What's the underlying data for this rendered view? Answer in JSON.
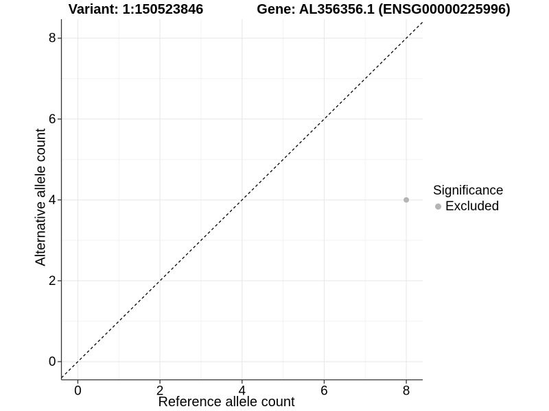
{
  "titles": {
    "variant": "Variant: 1:150523846",
    "gene": "Gene: AL356356.1 (ENSG00000225996)"
  },
  "chart_data": {
    "type": "scatter",
    "xlabel": "Reference allele count",
    "ylabel": "Alternative allele count",
    "xlim": [
      -0.4,
      8.4
    ],
    "ylim": [
      -0.45,
      8.47
    ],
    "xticks": [
      0,
      2,
      4,
      6,
      8
    ],
    "yticks": [
      0,
      2,
      4,
      6,
      8
    ],
    "minor_xticks": [
      1,
      3,
      5,
      7
    ],
    "minor_yticks": [
      1,
      3,
      5,
      7
    ],
    "grid": true,
    "series": [
      {
        "name": "Excluded",
        "points": [
          [
            8,
            4
          ]
        ],
        "color": "#b5b5b5",
        "point_radius": 4
      }
    ],
    "reference_line": {
      "slope": 1,
      "intercept": 0,
      "style": "dashed",
      "color": "#000000"
    },
    "legend": {
      "position": "right",
      "title": "Significance",
      "entries": [
        {
          "label": "Excluded",
          "color": "#b5b5b5"
        }
      ]
    },
    "style": {
      "grid_major_color": "#e6e6e6",
      "grid_minor_color": "#f2f2f2",
      "axis_color": "#333333",
      "tick_label_color": "#000000",
      "background": "#ffffff"
    }
  }
}
